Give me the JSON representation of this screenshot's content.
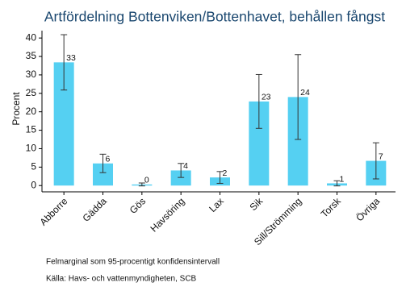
{
  "chart_data": {
    "type": "bar",
    "title": "Artfördelning Bottenviken/Bottenhavet, behållen fångst",
    "y_label": "Procent",
    "categories": [
      "Abborre",
      "Gädda",
      "Gös",
      "Havsöring",
      "Lax",
      "Sik",
      "Sill/Strömming",
      "Torsk",
      "Övriga"
    ],
    "values": [
      33.4,
      6.0,
      0.3,
      4.1,
      2.2,
      22.8,
      24.0,
      0.6,
      6.7
    ],
    "value_labels": [
      "33",
      "6",
      "0",
      "4",
      "2",
      "23",
      "24",
      "1",
      "7"
    ],
    "errors": [
      7.5,
      2.5,
      0.4,
      1.9,
      1.6,
      7.3,
      11.5,
      0.7,
      4.9
    ],
    "color": "#55d0f2",
    "ylim": [
      -1.7,
      42
    ],
    "yticks": [
      0,
      5,
      10,
      15,
      20,
      25,
      30,
      35,
      40
    ],
    "notes": [
      "Felmarginal som 95-procentigt konfidensintervall",
      "Källa: Havs- och vattenmyndigheten, SCB"
    ]
  }
}
